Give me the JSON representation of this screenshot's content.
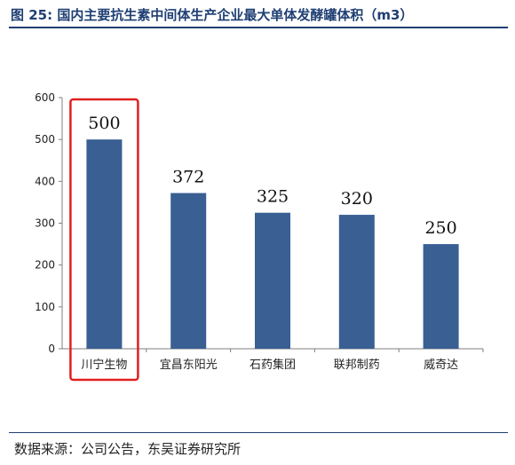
{
  "figure": {
    "title": "图 25: 国内主要抗生素中间体生产企业最大单体发酵罐体积（m3）",
    "source": "数据来源：公司公告，东吴证券研究所"
  },
  "colors": {
    "bar": "#3a5f93",
    "highlight_box": "#e02020",
    "title": "#1f3f73"
  },
  "chart_data": {
    "type": "bar",
    "categories": [
      "川宁生物",
      "宜昌东阳光",
      "石药集团",
      "联邦制药",
      "威奇达"
    ],
    "values": [
      500,
      372,
      325,
      320,
      250
    ],
    "ylim": [
      0,
      600
    ],
    "yticks": [
      0,
      100,
      200,
      300,
      400,
      500,
      600
    ],
    "highlight_category": "川宁生物",
    "grid": false,
    "data_labels": true
  }
}
